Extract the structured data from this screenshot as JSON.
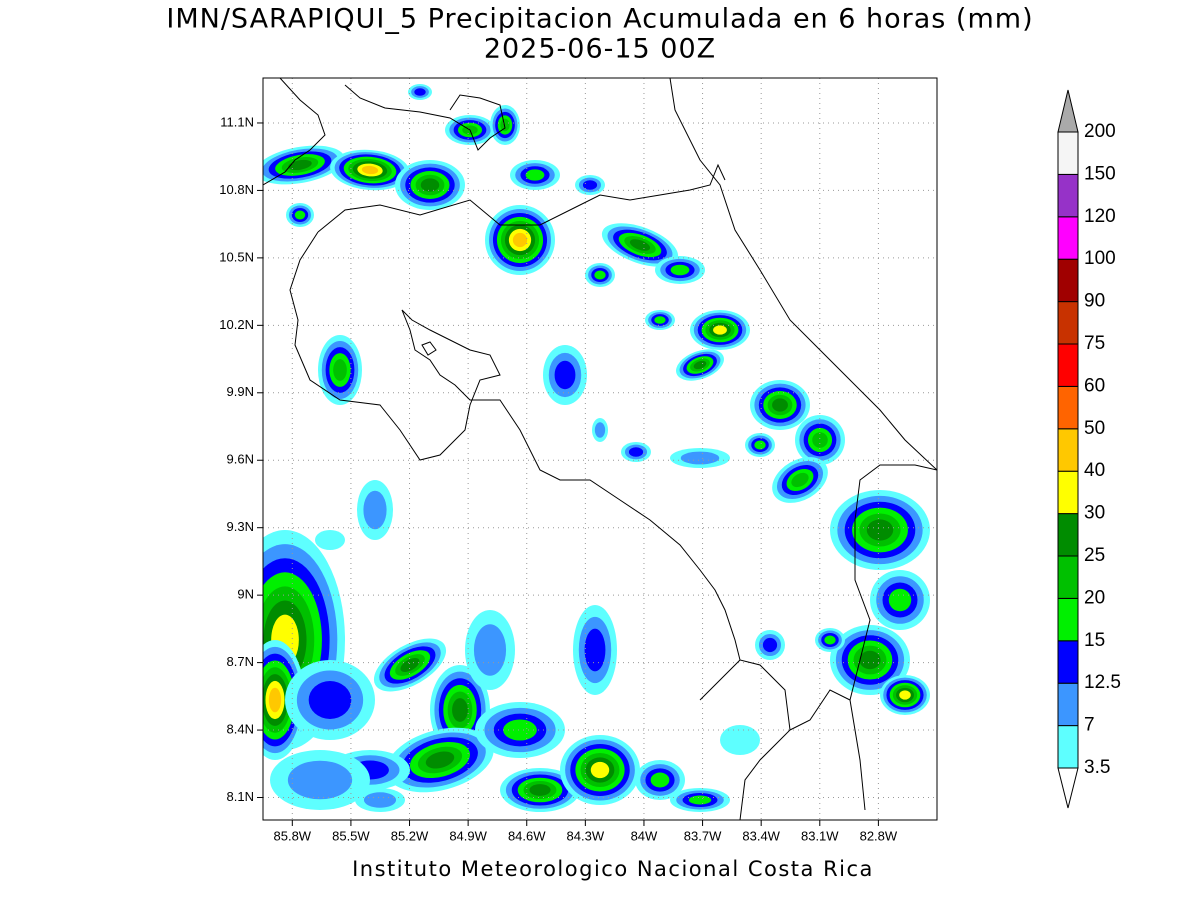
{
  "chart_data": {
    "type": "map",
    "title": "IMN/SARAPIQUI_5 Precipitacion Acumulada en 6 horas (mm)",
    "subtitle": "2025-06-15 00Z",
    "credit": "Instituto Meteorologico Nacional Costa Rica",
    "xlim": [
      -85.95,
      -82.5
    ],
    "ylim": [
      8.0,
      11.3
    ],
    "xticks": [
      {
        "value": -85.8,
        "label": "85.8W"
      },
      {
        "value": -85.5,
        "label": "85.5W"
      },
      {
        "value": -85.2,
        "label": "85.2W"
      },
      {
        "value": -84.9,
        "label": "84.9W"
      },
      {
        "value": -84.6,
        "label": "84.6W"
      },
      {
        "value": -84.3,
        "label": "84.3W"
      },
      {
        "value": -84,
        "label": "84W"
      },
      {
        "value": -83.7,
        "label": "83.7W"
      },
      {
        "value": -83.4,
        "label": "83.4W"
      },
      {
        "value": -83.1,
        "label": "83.1W"
      },
      {
        "value": -82.8,
        "label": "82.8W"
      }
    ],
    "yticks": [
      {
        "value": 8.1,
        "label": "8.1N"
      },
      {
        "value": 8.4,
        "label": "8.4N"
      },
      {
        "value": 8.7,
        "label": "8.7N"
      },
      {
        "value": 9,
        "label": "9N"
      },
      {
        "value": 9.3,
        "label": "9.3N"
      },
      {
        "value": 9.6,
        "label": "9.6N"
      },
      {
        "value": 9.9,
        "label": "9.9N"
      },
      {
        "value": 10.2,
        "label": "10.2N"
      },
      {
        "value": 10.5,
        "label": "10.5N"
      },
      {
        "value": 10.8,
        "label": "10.8N"
      },
      {
        "value": 11.1,
        "label": "11.1N"
      }
    ],
    "grid": true,
    "colorbar": {
      "levels": [
        3.5,
        7,
        12.5,
        15,
        20,
        25,
        30,
        40,
        50,
        60,
        75,
        90,
        100,
        120,
        150,
        200
      ],
      "colors": [
        "#ffffff",
        "#5effff",
        "#3c96ff",
        "#0000ff",
        "#00f000",
        "#00c000",
        "#008c00",
        "#ffff00",
        "#ffc800",
        "#ff6400",
        "#ff0000",
        "#c83200",
        "#a00000",
        "#ff00ff",
        "#9632c8",
        "#f5f5f5",
        "#aaaaaa"
      ]
    }
  }
}
